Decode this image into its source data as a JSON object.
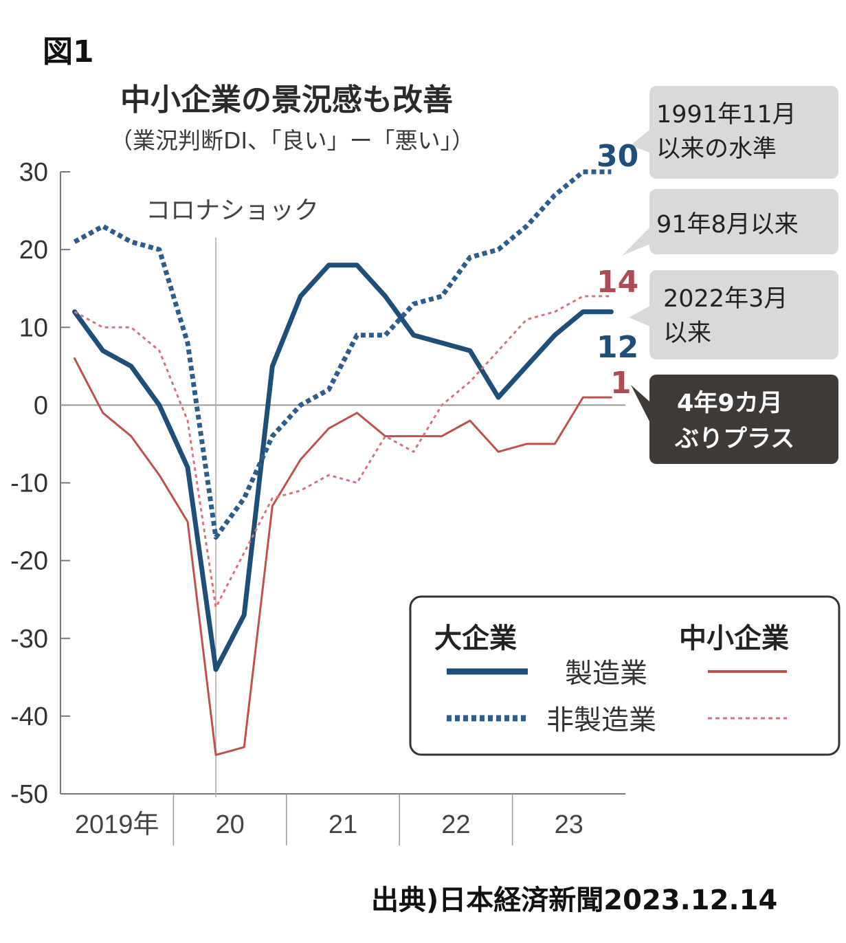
{
  "figure_label": "図1",
  "source": "出典)日本経済新聞2023.12.14",
  "chart_data": {
    "type": "line",
    "title": "中小企業の景況感も改善",
    "subtitle": "（業況判断DI、「良い」ー「悪い」）",
    "xlabel": "",
    "ylabel": "",
    "ylim": [
      -50,
      30
    ],
    "yticks": [
      30,
      20,
      10,
      0,
      -10,
      -20,
      -30,
      -40,
      -50
    ],
    "ytick_labels": [
      "30",
      "20",
      "10",
      "0",
      "-10",
      "-20",
      "-30",
      "-40",
      "-50"
    ],
    "x": [
      2019.125,
      2019.375,
      2019.625,
      2019.875,
      2020.125,
      2020.375,
      2020.625,
      2020.875,
      2021.125,
      2021.375,
      2021.625,
      2021.875,
      2022.125,
      2022.375,
      2022.625,
      2022.875,
      2023.125,
      2023.375,
      2023.625,
      2023.875
    ],
    "xlim": [
      2019.0,
      2024.0
    ],
    "year_boundaries": [
      2020.0,
      2021.0,
      2022.0,
      2023.0
    ],
    "year_labels": [
      {
        "label": "2019年",
        "x": 2019.5
      },
      {
        "label": "20",
        "x": 2020.5
      },
      {
        "label": "21",
        "x": 2021.5
      },
      {
        "label": "22",
        "x": 2022.5
      },
      {
        "label": "23",
        "x": 2023.5
      }
    ],
    "series": [
      {
        "name": "大企業 製造業",
        "group": "大企業",
        "kind": "製造業",
        "color": "#1f4e79",
        "style": "solid",
        "values": [
          12,
          7,
          5,
          0,
          -8,
          -34,
          -27,
          5,
          14,
          18,
          18,
          14,
          9,
          8,
          7,
          1,
          5,
          9,
          12,
          12
        ]
      },
      {
        "name": "大企業 非製造業",
        "group": "大企業",
        "kind": "非製造業",
        "color": "#2e5d8c",
        "style": "dotted",
        "values": [
          21,
          23,
          21,
          20,
          8,
          -17,
          -12,
          -4,
          0,
          2,
          9,
          9,
          13,
          14,
          19,
          20,
          23,
          27,
          30,
          30
        ]
      },
      {
        "name": "中小企業 製造業",
        "group": "中小企業",
        "kind": "製造業",
        "color": "#c0504d",
        "style": "solid",
        "values": [
          6,
          -1,
          -4,
          -9,
          -15,
          -45,
          -44,
          -13,
          -7,
          -3,
          -1,
          -4,
          -4,
          -4,
          -2,
          -6,
          -5,
          -5,
          1,
          1
        ]
      },
      {
        "name": "中小企業 非製造業",
        "group": "中小企業",
        "kind": "非製造業",
        "color": "#d9737a",
        "style": "dotted",
        "values": [
          12,
          10,
          10,
          7,
          -2,
          -26,
          -19,
          -12,
          -11,
          -9,
          -10,
          -4,
          -6,
          0,
          3,
          7,
          11,
          12,
          14,
          14
        ]
      }
    ],
    "event_annotation": {
      "label": "コロナショック",
      "x": 2020.375
    },
    "end_labels": [
      {
        "value": "30",
        "series": "大企業 非製造業",
        "color": "#1f4e79"
      },
      {
        "value": "14",
        "series": "中小企業 非製造業",
        "color": "#b04a55"
      },
      {
        "value": "12",
        "series": "大企業 製造業",
        "color": "#1f4e79"
      },
      {
        "value": "1",
        "series": "中小企業 製造業",
        "color": "#b04a55"
      }
    ],
    "callouts": [
      {
        "lines": [
          "1991年11月",
          "以来の水準"
        ],
        "dark": false
      },
      {
        "lines": [
          "91年8月以来"
        ],
        "dark": false
      },
      {
        "lines": [
          "2022年3月",
          "以来"
        ],
        "dark": false
      },
      {
        "lines": [
          "4年9カ月",
          "ぶりプラス"
        ],
        "dark": true
      }
    ],
    "legend": {
      "left_header": "大企業",
      "right_header": "中小企業",
      "row1": "製造業",
      "row2": "非製造業",
      "placement": "bottom-right"
    }
  }
}
